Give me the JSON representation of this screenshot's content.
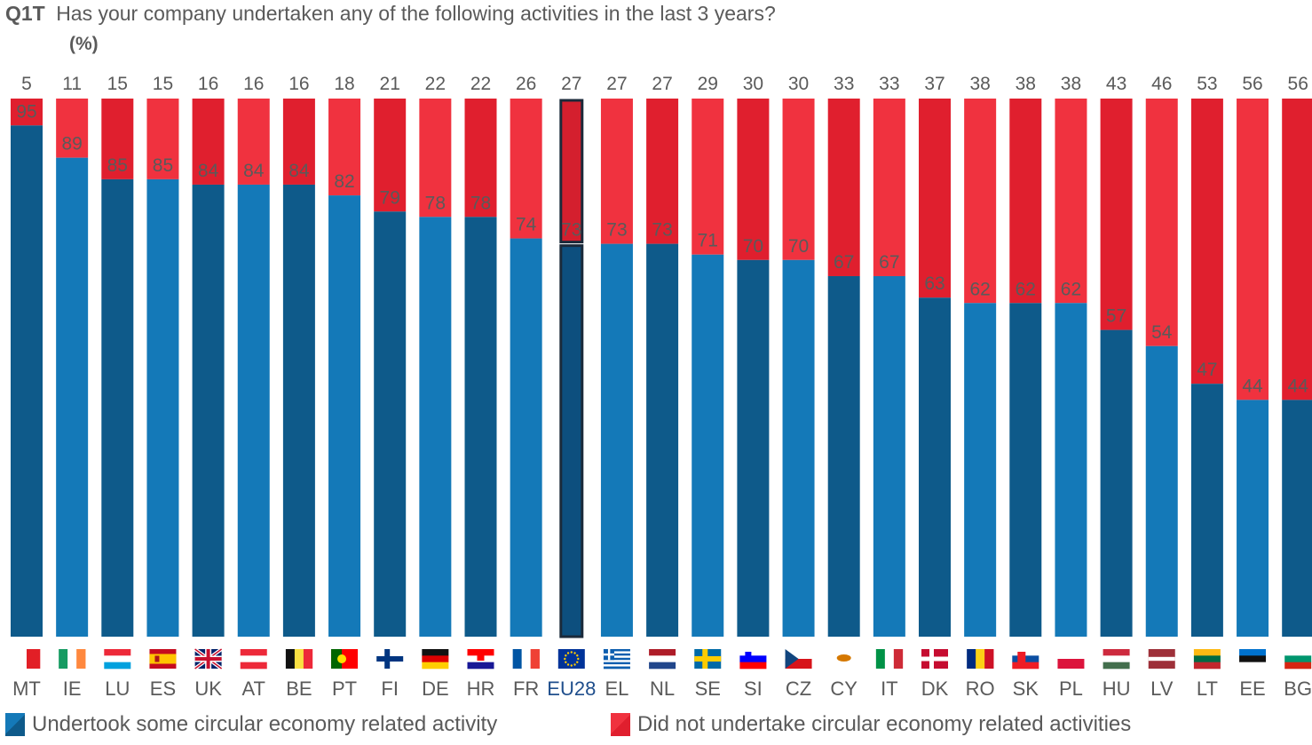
{
  "question": {
    "code": "Q1T",
    "text": "Has your company undertaken any of the following activities in the last 3 years?",
    "unit": "(%)"
  },
  "colors": {
    "blue_dark": "#0E5A8A",
    "blue_light": "#1479B8",
    "red_dark": "#E01F2E",
    "red_light": "#F0323F",
    "text": "#5a5a5a",
    "highlight_border": "#1B2A3A",
    "eu_label": "#1F4E8C"
  },
  "chart_data": {
    "type": "bar",
    "stacked": true,
    "ylim": [
      0,
      100
    ],
    "grid": false,
    "legend_position": "bottom",
    "highlight_category": "EU28",
    "categories": [
      "MT",
      "IE",
      "LU",
      "ES",
      "UK",
      "AT",
      "BE",
      "PT",
      "FI",
      "DE",
      "HR",
      "FR",
      "EU28",
      "EL",
      "NL",
      "SE",
      "SI",
      "CZ",
      "CY",
      "IT",
      "DK",
      "RO",
      "SK",
      "PL",
      "HU",
      "LV",
      "LT",
      "EE",
      "BG"
    ],
    "series": [
      {
        "name": "Undertook some circular economy related activity",
        "color": "#1479B8",
        "values": [
          95,
          89,
          85,
          85,
          84,
          84,
          84,
          82,
          79,
          78,
          78,
          74,
          73,
          73,
          73,
          71,
          70,
          70,
          67,
          67,
          63,
          62,
          62,
          62,
          57,
          54,
          47,
          44,
          44
        ]
      },
      {
        "name": "Did not undertake circular economy related activities",
        "color": "#F0323F",
        "values": [
          5,
          11,
          15,
          15,
          16,
          16,
          16,
          18,
          21,
          22,
          22,
          26,
          27,
          27,
          27,
          29,
          30,
          30,
          33,
          33,
          37,
          38,
          38,
          38,
          43,
          46,
          53,
          56,
          56
        ]
      }
    ],
    "flags": [
      "mt-flag-icon",
      "ie-flag-icon",
      "lu-flag-icon",
      "es-flag-icon",
      "uk-flag-icon",
      "at-flag-icon",
      "be-flag-icon",
      "pt-flag-icon",
      "fi-flag-icon",
      "de-flag-icon",
      "hr-flag-icon",
      "fr-flag-icon",
      "eu-flag-icon",
      "el-flag-icon",
      "nl-flag-icon",
      "se-flag-icon",
      "si-flag-icon",
      "cz-flag-icon",
      "cy-flag-icon",
      "it-flag-icon",
      "dk-flag-icon",
      "ro-flag-icon",
      "sk-flag-icon",
      "pl-flag-icon",
      "hu-flag-icon",
      "lv-flag-icon",
      "lt-flag-icon",
      "ee-flag-icon",
      "bg-flag-icon"
    ]
  },
  "legend": {
    "items": [
      {
        "label": "Undertook some circular economy related activity",
        "color": "#1479B8"
      },
      {
        "label": "Did not undertake circular economy related activities",
        "color": "#F0323F"
      }
    ]
  }
}
